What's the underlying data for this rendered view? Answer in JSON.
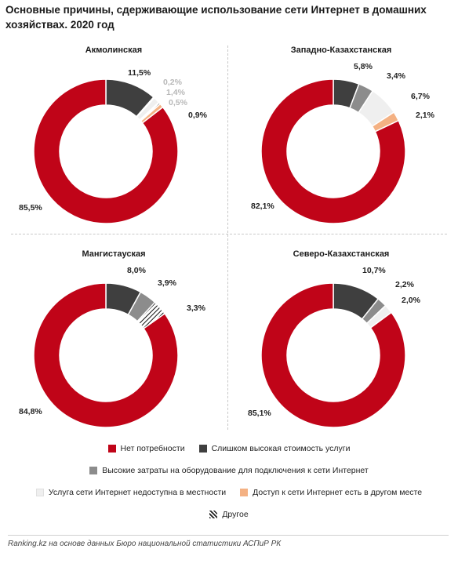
{
  "title": "Основные причины, сдерживающие использование сети Интернет в домашних хозяйствах. 2020 год",
  "colors": {
    "no_need": "#c00418",
    "high_cost": "#3f3f3f",
    "equipment_cost": "#8c8c8c",
    "unavailable": "#efefef",
    "elsewhere": "#f4b183",
    "other": "#ffffff"
  },
  "legend": [
    {
      "key": "no_need",
      "label": "Нет потребности",
      "icon": "square-swatch"
    },
    {
      "key": "high_cost",
      "label": "Слишком высокая стоимость услуги",
      "icon": "square-swatch"
    },
    {
      "key": "equipment_cost",
      "label": "Высокие затраты на оборудование для подключения к сети Интернет",
      "icon": "square-swatch"
    },
    {
      "key": "unavailable",
      "label": "Услуга сети Интернет недоступна в местности",
      "icon": "square-swatch"
    },
    {
      "key": "elsewhere",
      "label": "Доступ к сети Интернет есть в другом месте",
      "icon": "square-swatch"
    },
    {
      "key": "other",
      "label": "Другое",
      "icon": "hatched-swatch"
    }
  ],
  "chart_data": [
    {
      "type": "pie",
      "title": "Акмолинская",
      "series": [
        {
          "name": "Слишком высокая стоимость услуги",
          "key": "high_cost",
          "value": 11.5,
          "label": "11,5%"
        },
        {
          "name": "Высокие затраты на оборудование для подключения к сети Интернет",
          "key": "equipment_cost",
          "value": 0.2,
          "label": "0,2%"
        },
        {
          "name": "Услуга сети Интернет недоступна в местности",
          "key": "unavailable",
          "value": 1.4,
          "label": "1,4%"
        },
        {
          "name": "Другое",
          "key": "other",
          "value": 0.5,
          "label": "0,5%"
        },
        {
          "name": "Доступ к сети Интернет есть в другом месте",
          "key": "elsewhere",
          "value": 0.9,
          "label": "0,9%"
        },
        {
          "name": "Нет потребности",
          "key": "no_need",
          "value": 85.5,
          "label": "85,5%"
        }
      ]
    },
    {
      "type": "pie",
      "title": "Западно-Казахстанская",
      "series": [
        {
          "name": "Слишком высокая стоимость услуги",
          "key": "high_cost",
          "value": 5.8,
          "label": "5,8%"
        },
        {
          "name": "Высокие затраты на оборудование для подключения к сети Интернет",
          "key": "equipment_cost",
          "value": 3.4,
          "label": "3,4%"
        },
        {
          "name": "Услуга сети Интернет недоступна в местности",
          "key": "unavailable",
          "value": 6.7,
          "label": "6,7%"
        },
        {
          "name": "Доступ к сети Интернет есть в другом месте",
          "key": "elsewhere",
          "value": 2.1,
          "label": "2,1%"
        },
        {
          "name": "Нет потребности",
          "key": "no_need",
          "value": 82.1,
          "label": "82,1%"
        }
      ]
    },
    {
      "type": "pie",
      "title": "Мангистауская",
      "series": [
        {
          "name": "Слишком высокая стоимость услуги",
          "key": "high_cost",
          "value": 8.0,
          "label": "8,0%"
        },
        {
          "name": "Высокие затраты на оборудование для подключения к сети Интернет",
          "key": "equipment_cost",
          "value": 3.9,
          "label": "3,9%"
        },
        {
          "name": "Другое",
          "key": "other",
          "value": 3.3,
          "label": "3,3%"
        },
        {
          "name": "Нет потребности",
          "key": "no_need",
          "value": 84.8,
          "label": "84,8%"
        }
      ]
    },
    {
      "type": "pie",
      "title": "Северо-Казахстанская",
      "series": [
        {
          "name": "Слишком высокая стоимость услуги",
          "key": "high_cost",
          "value": 10.7,
          "label": "10,7%"
        },
        {
          "name": "Высокие затраты на оборудование для подключения к сети Интернет",
          "key": "equipment_cost",
          "value": 2.2,
          "label": "2,2%"
        },
        {
          "name": "Услуга сети Интернет недоступна в местности",
          "key": "unavailable",
          "value": 2.0,
          "label": "2,0%"
        },
        {
          "name": "Нет потребности",
          "key": "no_need",
          "value": 85.1,
          "label": "85,1%"
        }
      ]
    }
  ],
  "footer": "Ranking.kz на основе данных Бюро национальной статистики АСПиР РК"
}
